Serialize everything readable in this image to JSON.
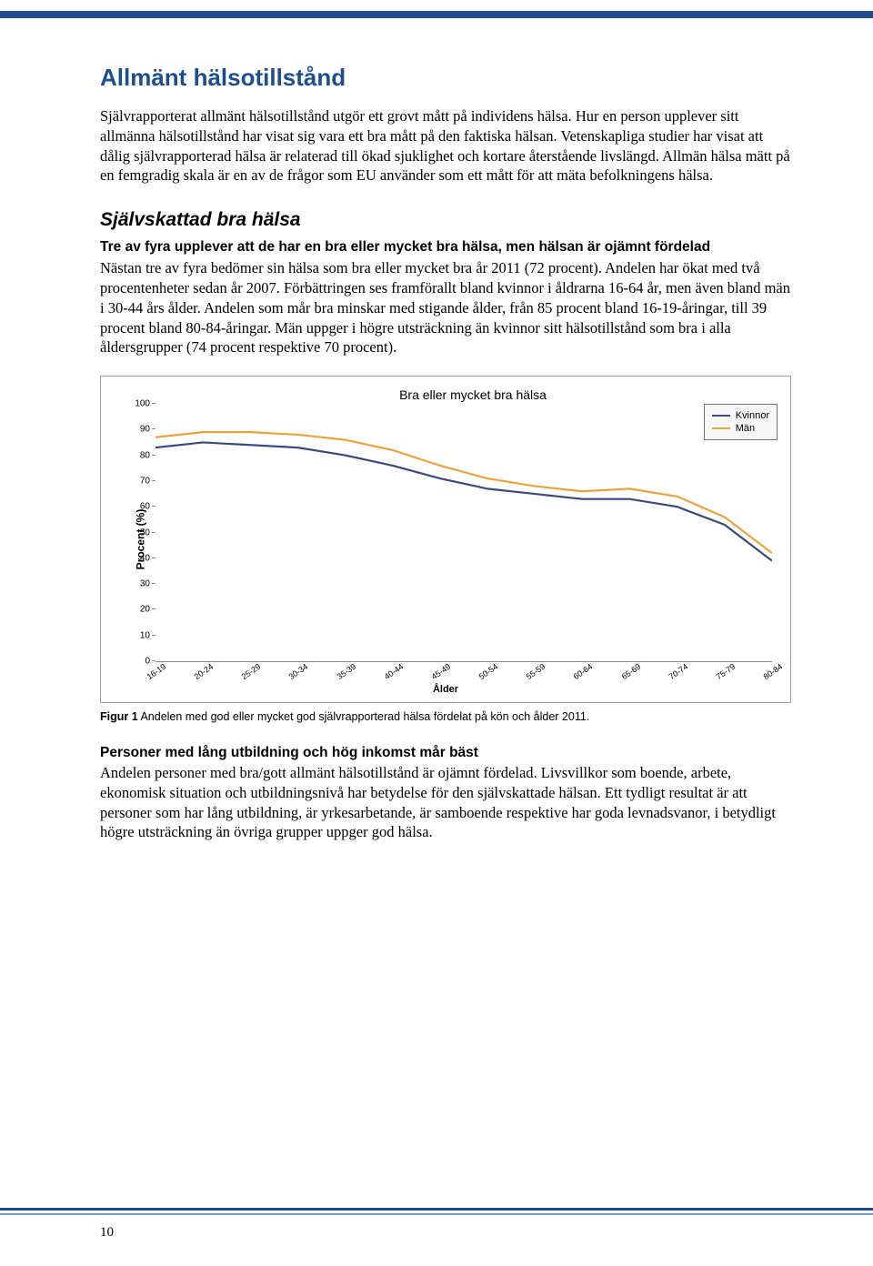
{
  "colors": {
    "accent": "#1f4e8c",
    "footer_light": "#6e9bd1",
    "kvinnor": "#3a4a7a",
    "man": "#e8a33d"
  },
  "title": "Allmänt hälsotillstånd",
  "intro": "Självrapporterat allmänt hälsotillstånd utgör ett grovt mått på individens hälsa. Hur en person upplever sitt allmänna hälsotillstånd har visat sig vara ett bra mått på den faktiska hälsan. Vetenskapliga studier har visat att dålig självrapporterad hälsa är relaterad till ökad sjuklighet och kortare återstående livslängd. Allmän hälsa mätt på en femgradig skala är en av de frågor som EU använder som ett mått för att mäta befolkningens hälsa.",
  "sub_title": "Självskattad bra hälsa",
  "bold_lead": "Tre av fyra upplever att de har en bra eller mycket bra hälsa, men hälsan är ojämnt fördelad",
  "body1": "Nästan tre av fyra bedömer sin hälsa som bra eller mycket bra år 2011 (72 procent). Andelen har ökat med två procentenheter sedan år 2007. Förbättringen ses framförallt bland kvinnor i åldrarna 16-64 år, men även bland män i 30-44 års ålder. Andelen som mår bra minskar med stigande ålder, från 85 procent bland 16-19-åringar, till 39 procent bland 80-84-åringar. Män uppger i högre utsträckning än kvinnor sitt hälsotillstånd som bra i alla åldersgrupper (74 procent respektive 70 procent).",
  "chart": {
    "title": "Bra eller mycket bra hälsa",
    "ylabel": "Procent (%)",
    "xlabel": "Ålder",
    "ylim": [
      0,
      100
    ],
    "yticks": [
      0,
      10,
      20,
      30,
      40,
      50,
      60,
      70,
      80,
      90,
      100
    ],
    "categories": [
      "16-19",
      "20-24",
      "25-29",
      "30-34",
      "35-39",
      "40-44",
      "45-49",
      "50-54",
      "55-59",
      "60-64",
      "65-69",
      "70-74",
      "75-79",
      "80-84"
    ],
    "series": [
      {
        "name": "Kvinnor",
        "color": "#3a4a7a",
        "width": 2.2,
        "values": [
          83,
          85,
          84,
          83,
          80,
          76,
          71,
          67,
          65,
          63,
          63,
          60,
          53,
          39
        ]
      },
      {
        "name": "Män",
        "color": "#e8a33d",
        "width": 2.2,
        "values": [
          87,
          89,
          89,
          88,
          86,
          82,
          76,
          71,
          68,
          66,
          67,
          64,
          56,
          42
        ]
      }
    ],
    "legend": [
      "Kvinnor",
      "Män"
    ]
  },
  "caption_bold": "Figur 1",
  "caption_rest": " Andelen med god eller mycket god självrapporterad hälsa fördelat på kön och ålder 2011.",
  "para2_title": "Personer med lång utbildning och hög inkomst mår bäst",
  "para2_body": "Andelen personer med bra/gott allmänt hälsotillstånd är ojämnt fördelad. Livsvillkor som boende, arbete, ekonomisk situation och utbildningsnivå har betydelse för den självskattade hälsan. Ett tydligt resultat är att personer som har lång utbildning, är yrkesarbetande, är samboende respektive har goda levnadsvanor, i betydligt högre utsträckning än övriga grupper uppger god hälsa.",
  "page_number": "10"
}
